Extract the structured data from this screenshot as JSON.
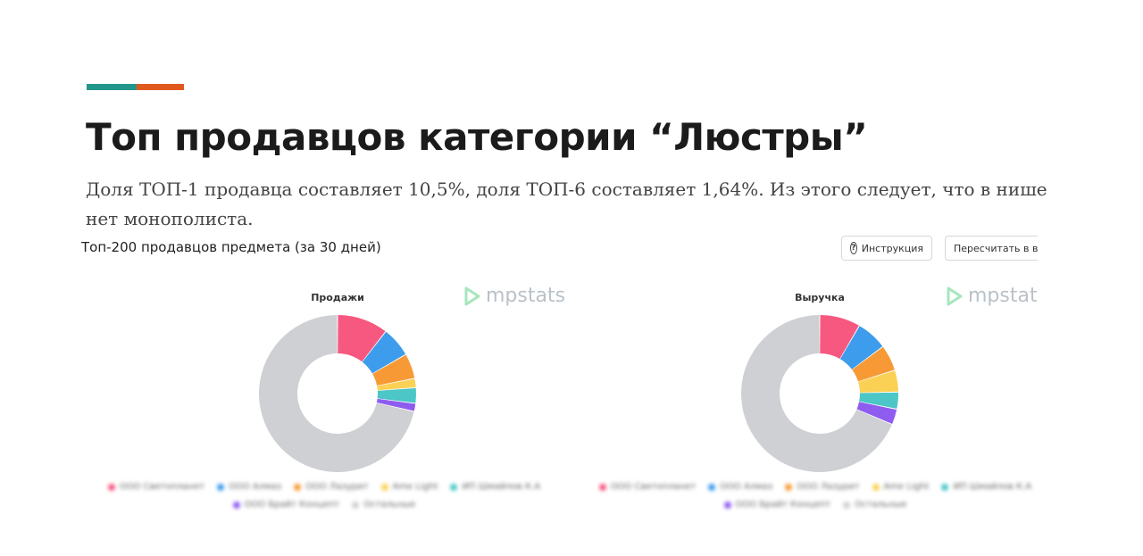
{
  "colors": {
    "accent_teal": "#22968a",
    "accent_orange": "#e05a1f",
    "logo": "#b9c2c9",
    "logo_mark": "#a6e6bc"
  },
  "slide": {
    "title": "Топ продавцов категории “Люстры”",
    "subtitle": "Доля ТОП-1 продавца составляет 10,5%, доля ТОП-6 составляет 1,64%. Из этого следует, что в нише нет монополиста."
  },
  "panel": {
    "title": "Топ-200 продавцов предмета (за 30 дней)",
    "help_button": "Инструкция",
    "help_icon": "question-circle-icon",
    "recalc_button": "Пересчитать в ва"
  },
  "logo": {
    "text": "mpstats"
  },
  "legend": [
    {
      "name": "ООО Светопланет",
      "color": "#f7587f"
    },
    {
      "name": "ООО Алмаз",
      "color": "#3d9cec"
    },
    {
      "name": "ООО Лазурит",
      "color": "#f79a36"
    },
    {
      "name": "Ame Light",
      "color": "#fbd155"
    },
    {
      "name": "ИП Шмайлов К.А",
      "color": "#4cc6c6"
    },
    {
      "name": "ООО Брайт Концепт",
      "color": "#8f5cf0"
    },
    {
      "name": "Остальные",
      "color": "#cfd0d3"
    }
  ],
  "chart_data": [
    {
      "type": "pie",
      "title": "Продажи",
      "series": [
        {
          "name": "ООО Светопланет",
          "value": 10.5
        },
        {
          "name": "ООО Алмаз",
          "value": 6.2
        },
        {
          "name": "ООО Лазурит",
          "value": 5.2
        },
        {
          "name": "Ame Light",
          "value": 1.9
        },
        {
          "name": "ИП Шмайлов К.А",
          "value": 3.2
        },
        {
          "name": "ООО Брайт Концепт",
          "value": 1.64
        },
        {
          "name": "Остальные",
          "value": 71.36
        }
      ]
    },
    {
      "type": "pie",
      "title": "Выручка",
      "series": [
        {
          "name": "ООО Светопланет",
          "value": 8.4
        },
        {
          "name": "ООО Алмаз",
          "value": 6.4
        },
        {
          "name": "ООО Лазурит",
          "value": 5.4
        },
        {
          "name": "Ame Light",
          "value": 4.5
        },
        {
          "name": "ИП Шмайлов К.А",
          "value": 3.5
        },
        {
          "name": "ООО Брайт Концепт",
          "value": 3.2
        },
        {
          "name": "Остальные",
          "value": 68.6
        }
      ]
    }
  ]
}
